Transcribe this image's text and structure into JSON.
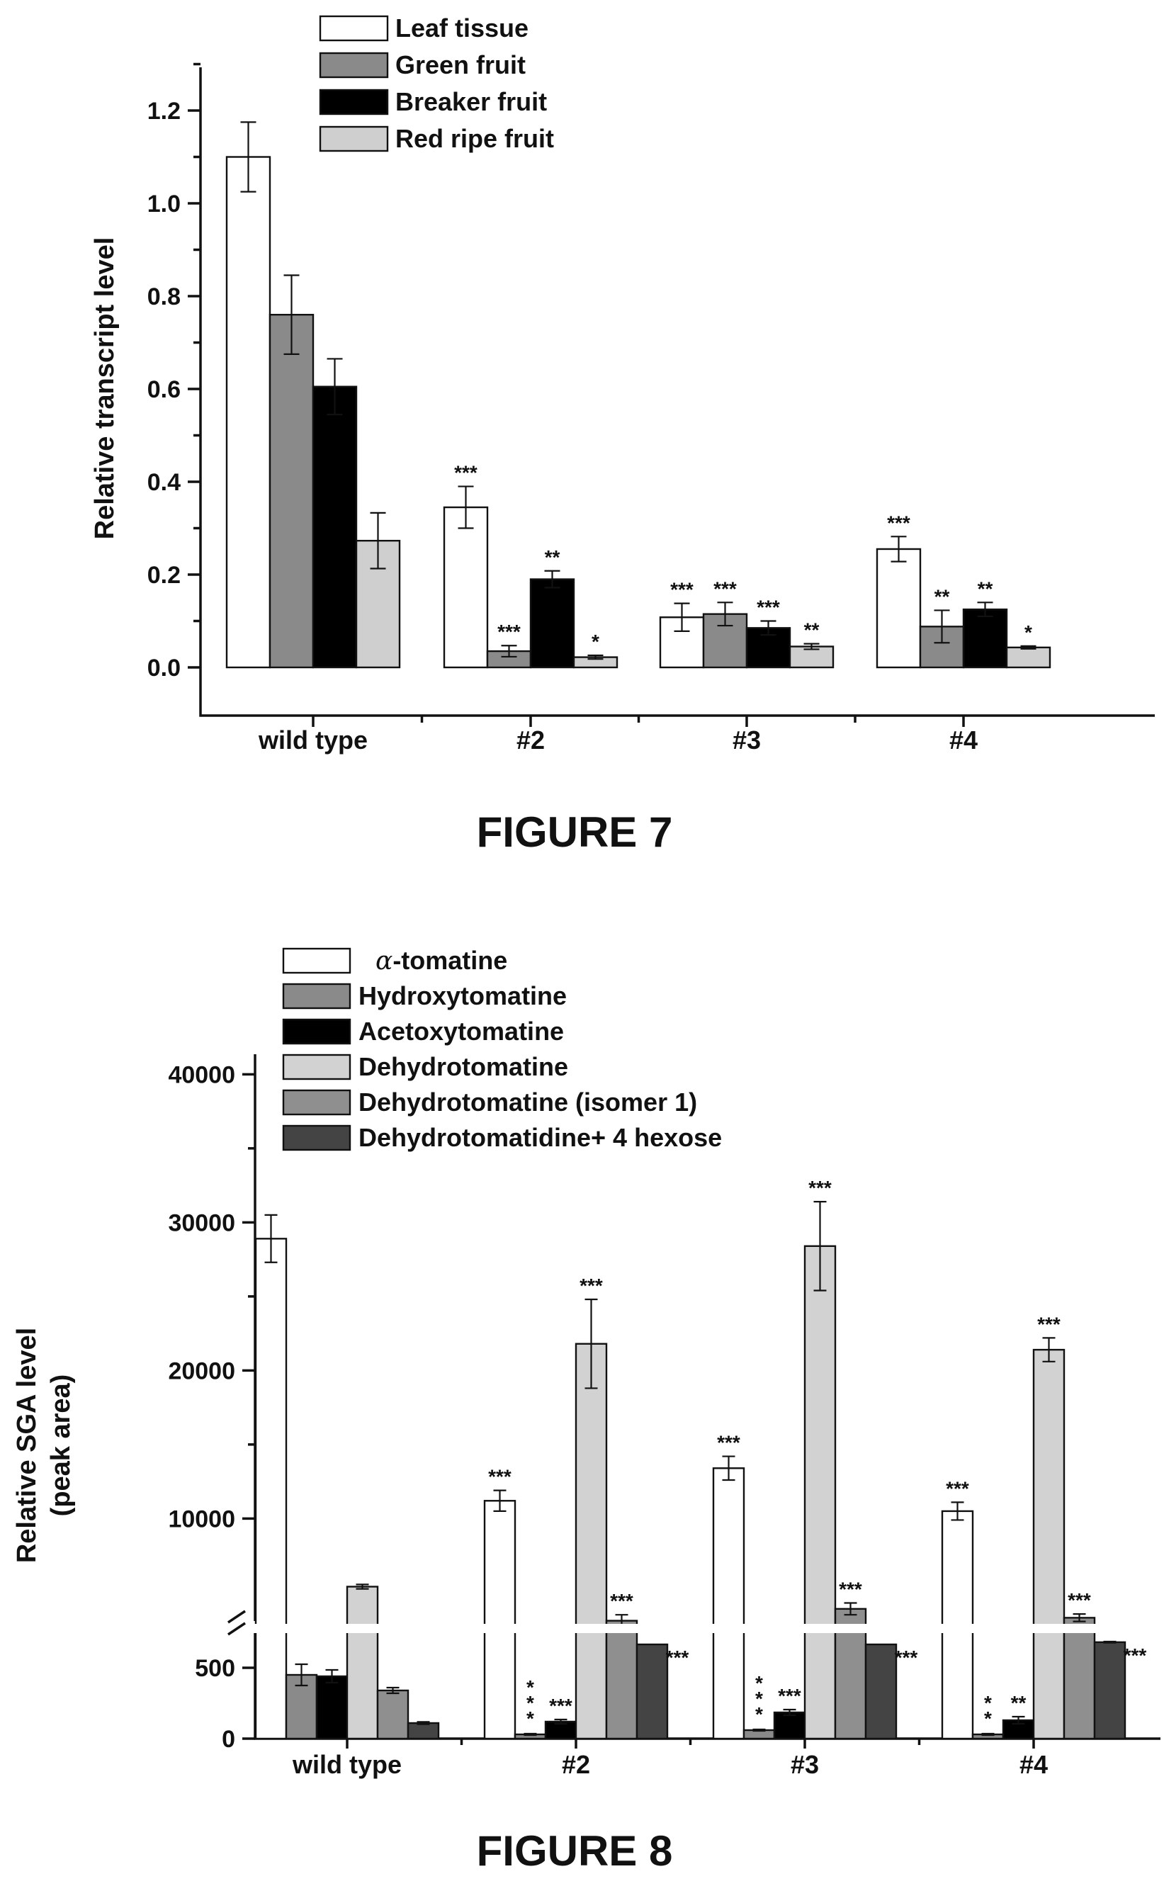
{
  "figures": [
    {
      "label": "FIGURE 7"
    },
    {
      "label": "FIGURE 8"
    }
  ],
  "chart_data": [
    {
      "type": "bar",
      "title": "",
      "xlabel": "",
      "ylabel": "Relative transcript level",
      "ylim": [
        -0.1,
        1.3
      ],
      "yticks": [
        "0.0",
        "0.2",
        "0.4",
        "0.6",
        "0.8",
        "1.0",
        "1.2"
      ],
      "categories": [
        "wild type",
        "#2",
        "#3",
        "#4"
      ],
      "legend_position": "top-left",
      "series": [
        {
          "name": "Leaf tissue",
          "color": "#ffffff",
          "values": [
            1.1,
            0.345,
            0.108,
            0.255
          ],
          "errors": [
            0.075,
            0.045,
            0.03,
            0.027
          ],
          "sig": [
            "",
            "***",
            "***",
            "***"
          ]
        },
        {
          "name": "Green fruit",
          "color": "#8a8a8a",
          "values": [
            0.76,
            0.035,
            0.115,
            0.088
          ],
          "errors": [
            0.085,
            0.012,
            0.025,
            0.035
          ],
          "sig": [
            "",
            "***",
            "***",
            "**"
          ]
        },
        {
          "name": "Breaker fruit",
          "color": "#000000",
          "values": [
            0.605,
            0.19,
            0.085,
            0.125
          ],
          "errors": [
            0.06,
            0.018,
            0.015,
            0.015
          ],
          "sig": [
            "",
            "**",
            "***",
            "**"
          ]
        },
        {
          "name": "Red ripe fruit",
          "color": "#cfcfcf",
          "values": [
            0.273,
            0.022,
            0.045,
            0.043
          ],
          "errors": [
            0.06,
            0.004,
            0.006,
            0.003
          ],
          "sig": [
            "",
            "*",
            "**",
            "*"
          ]
        }
      ]
    },
    {
      "type": "bar",
      "title": "",
      "xlabel": "",
      "ylabel": "Relative SGA level (peak area)",
      "ylabel_lines": [
        "Relative SGA level",
        "(peak area)"
      ],
      "y_axis_break": {
        "lower_range": [
          0,
          600
        ],
        "upper_range": [
          1500,
          40000
        ]
      },
      "yticks": [
        "0",
        "500",
        "10000",
        "20000",
        "30000",
        "40000"
      ],
      "categories": [
        "wild type",
        "#2",
        "#3",
        "#4"
      ],
      "legend_position": "top-left",
      "series": [
        {
          "name": "α-tomatine",
          "name_prefix": "α",
          "name_suffix": "-tomatine",
          "color": "#ffffff",
          "values": [
            28900,
            11200,
            13400,
            10500
          ],
          "errors": [
            1600,
            700,
            800,
            600
          ],
          "sig": [
            "",
            "***",
            "***",
            "***"
          ]
        },
        {
          "name": "Hydroxytomatine",
          "color": "#8a8a8a",
          "values": [
            450,
            30,
            60,
            30
          ],
          "errors": [
            75,
            5,
            5,
            5
          ],
          "sig": [
            "",
            "***",
            "***",
            "**"
          ]
        },
        {
          "name": "Acetoxytomatine",
          "color": "#000000",
          "values": [
            440,
            120,
            185,
            130
          ],
          "errors": [
            45,
            15,
            20,
            25
          ],
          "sig": [
            "",
            "***",
            "***",
            "**"
          ]
        },
        {
          "name": "Dehydrotomatine",
          "color": "#d2d2d2",
          "values": [
            5400,
            21800,
            28400,
            21400
          ],
          "errors": [
            150,
            3000,
            3000,
            800
          ],
          "sig": [
            "",
            "***",
            "***",
            "***"
          ]
        },
        {
          "name": "Dehydrotomatine (isomer 1)",
          "color": "#8f8f8f",
          "values": [
            340,
            3100,
            3900,
            3300
          ],
          "errors": [
            20,
            400,
            400,
            250
          ],
          "sig": [
            "",
            "***",
            "***",
            "***"
          ]
        },
        {
          "name": "Dehydrotomatidine+ 4 hexose",
          "color": "#444444",
          "values": [
            110,
            1500,
            1500,
            1650
          ],
          "errors": [
            8,
            0,
            0,
            40
          ],
          "sig": [
            "",
            "***",
            "***",
            "***"
          ]
        }
      ]
    }
  ]
}
